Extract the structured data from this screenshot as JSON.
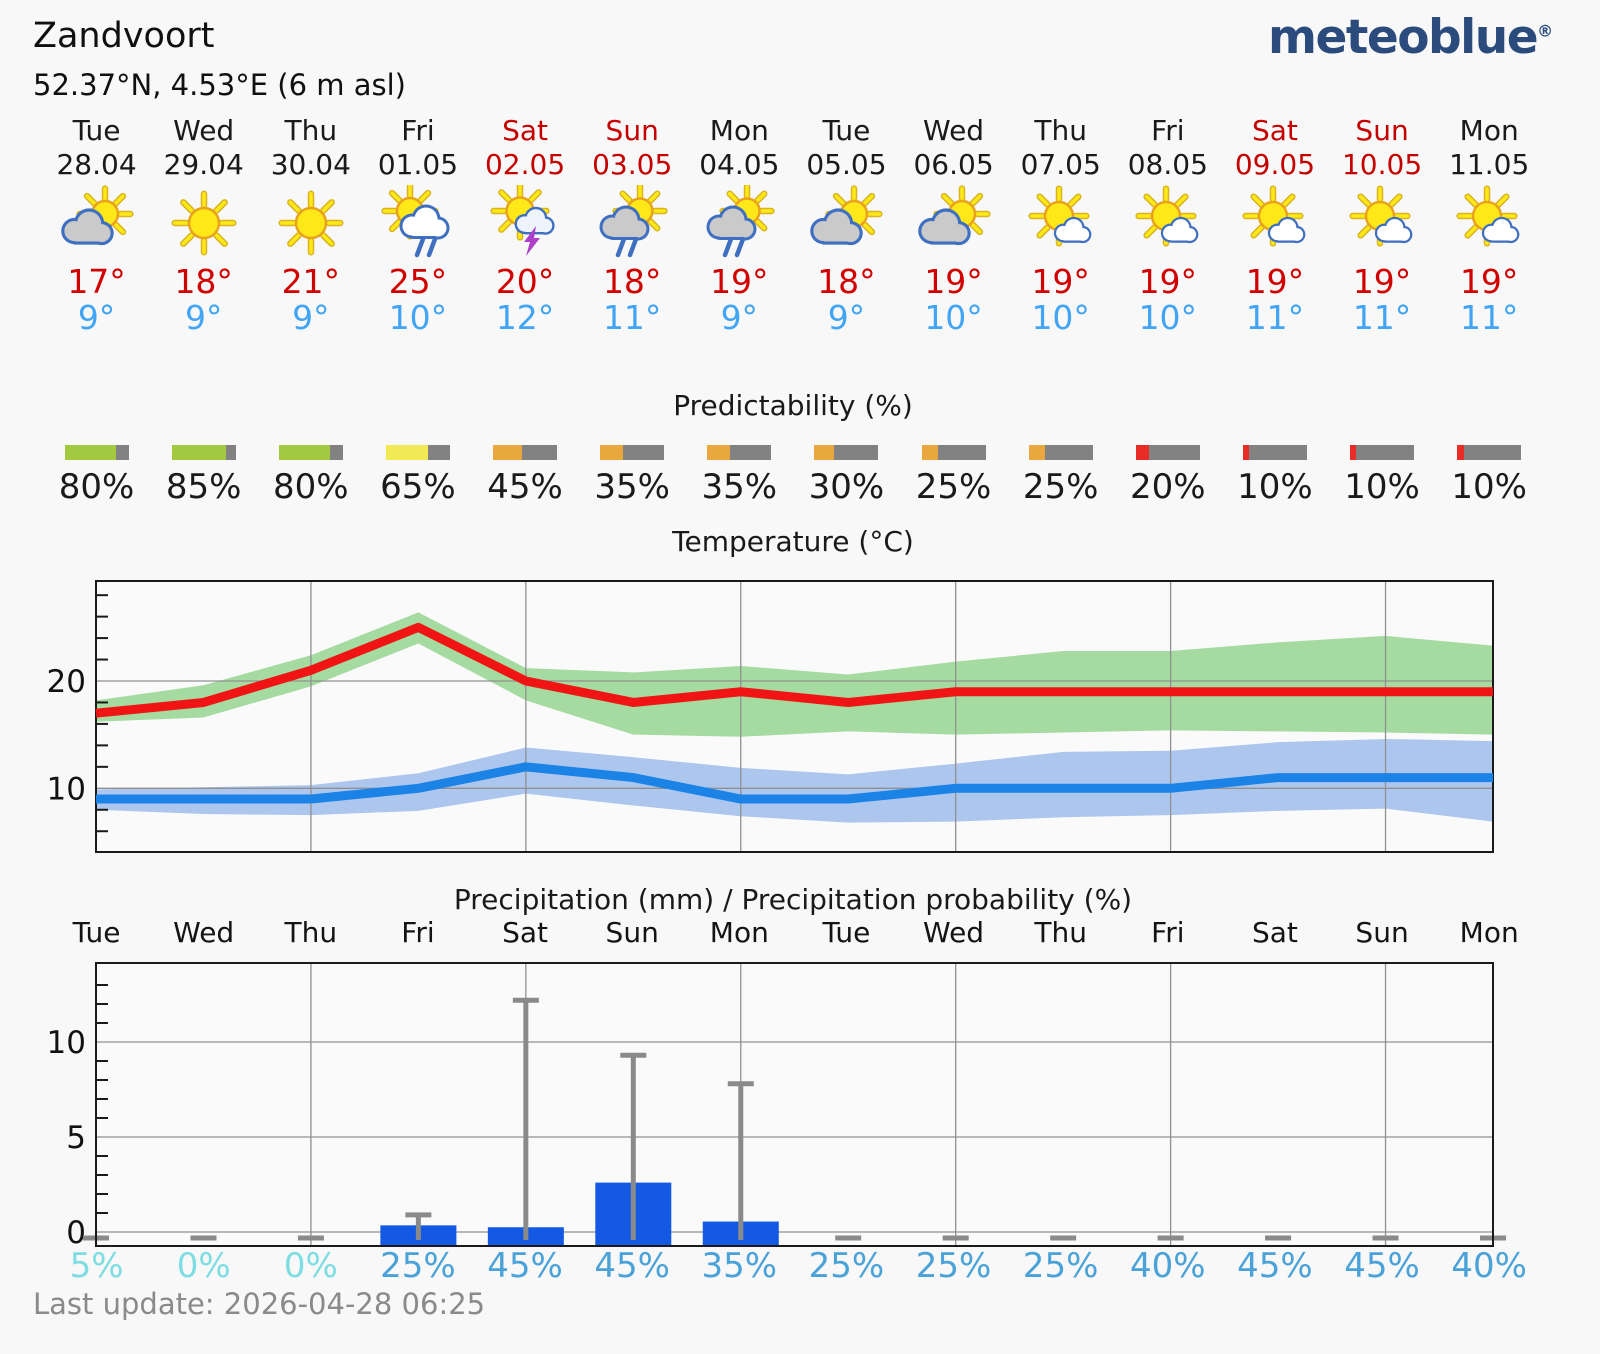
{
  "header": {
    "title": "Zandvoort",
    "subtitle": "52.37°N, 4.53°E (6 m asl)",
    "logo_text": "meteoblue",
    "logo_reg": "®"
  },
  "sections": {
    "predictability_title": "Predictability (%)"
  },
  "days": [
    {
      "name": "Tue",
      "date": "28.04",
      "weekend": false,
      "icon": "sun-cloud-gray",
      "tmax": "17°",
      "tmin": "9°",
      "predictability": "80%",
      "pred_color": "green",
      "precip_prob": "5%"
    },
    {
      "name": "Wed",
      "date": "29.04",
      "weekend": false,
      "icon": "sun",
      "tmax": "18°",
      "tmin": "9°",
      "predictability": "85%",
      "pred_color": "green",
      "precip_prob": "0%"
    },
    {
      "name": "Thu",
      "date": "30.04",
      "weekend": false,
      "icon": "sun",
      "tmax": "21°",
      "tmin": "9°",
      "predictability": "80%",
      "pred_color": "green",
      "precip_prob": "0%"
    },
    {
      "name": "Fri",
      "date": "01.05",
      "weekend": false,
      "icon": "sun-cloud-white-rain",
      "tmax": "25°",
      "tmin": "10°",
      "predictability": "65%",
      "pred_color": "yellow",
      "precip_prob": "25%"
    },
    {
      "name": "Sat",
      "date": "02.05",
      "weekend": true,
      "icon": "sun-cloud-thunder",
      "tmax": "20°",
      "tmin": "12°",
      "predictability": "45%",
      "pred_color": "orange",
      "precip_prob": "45%"
    },
    {
      "name": "Sun",
      "date": "03.05",
      "weekend": true,
      "icon": "sun-cloud-gray-rain",
      "tmax": "18°",
      "tmin": "11°",
      "predictability": "35%",
      "pred_color": "orange",
      "precip_prob": "45%"
    },
    {
      "name": "Mon",
      "date": "04.05",
      "weekend": false,
      "icon": "sun-cloud-gray-rain",
      "tmax": "19°",
      "tmin": "9°",
      "predictability": "35%",
      "pred_color": "orange",
      "precip_prob": "35%"
    },
    {
      "name": "Tue",
      "date": "05.05",
      "weekend": false,
      "icon": "sun-cloud-gray",
      "tmax": "18°",
      "tmin": "9°",
      "predictability": "30%",
      "pred_color": "orange",
      "precip_prob": "25%"
    },
    {
      "name": "Wed",
      "date": "06.05",
      "weekend": false,
      "icon": "sun-cloud-gray",
      "tmax": "19°",
      "tmin": "10°",
      "predictability": "25%",
      "pred_color": "orange",
      "precip_prob": "25%"
    },
    {
      "name": "Thu",
      "date": "07.05",
      "weekend": false,
      "icon": "sun-cloud-small",
      "tmax": "19°",
      "tmin": "10°",
      "predictability": "25%",
      "pred_color": "orange",
      "precip_prob": "25%"
    },
    {
      "name": "Fri",
      "date": "08.05",
      "weekend": false,
      "icon": "sun-cloud-small",
      "tmax": "19°",
      "tmin": "10°",
      "predictability": "20%",
      "pred_color": "red",
      "precip_prob": "40%"
    },
    {
      "name": "Sat",
      "date": "09.05",
      "weekend": true,
      "icon": "sun-cloud-small",
      "tmax": "19°",
      "tmin": "11°",
      "predictability": "10%",
      "pred_color": "red",
      "precip_prob": "45%"
    },
    {
      "name": "Sun",
      "date": "10.05",
      "weekend": true,
      "icon": "sun-cloud-small",
      "tmax": "19°",
      "tmin": "11°",
      "predictability": "10%",
      "pred_color": "red",
      "precip_prob": "45%"
    },
    {
      "name": "Mon",
      "date": "11.05",
      "weekend": false,
      "icon": "sun-cloud-small",
      "tmax": "19°",
      "tmin": "11°",
      "predictability": "10%",
      "pred_color": "red",
      "precip_prob": "40%"
    }
  ],
  "chart_data": [
    {
      "type": "line",
      "title": "Temperature (°C)",
      "x": [
        "Tue 28.04",
        "Wed 29.04",
        "Thu 30.04",
        "Fri 01.05",
        "Sat 02.05",
        "Sun 03.05",
        "Mon 04.05",
        "Tue 05.05",
        "Wed 06.05",
        "Thu 07.05",
        "Fri 08.05",
        "Sat 09.05",
        "Sun 10.05",
        "Mon 11.05"
      ],
      "ylim": [
        4.1,
        29.3
      ],
      "yticks": [
        10,
        20
      ],
      "minor_tick_step": 2,
      "grid_x_day_indices": [
        2,
        4,
        6,
        8,
        10,
        12
      ],
      "series": [
        {
          "name": "max-temperature",
          "color": "#f01414",
          "values": [
            17,
            18,
            21,
            25,
            20,
            18,
            19,
            18,
            19,
            19,
            19,
            19,
            19,
            19
          ]
        },
        {
          "name": "min-temperature",
          "color": "#1b82e6",
          "values": [
            9,
            9,
            9,
            10,
            12,
            11,
            9,
            9,
            10,
            10,
            10,
            11,
            11,
            11
          ]
        },
        {
          "name": "max-temperature-range-low",
          "color": "#a5dba0",
          "values": [
            16.2,
            16.6,
            19.5,
            23.5,
            18.2,
            15.0,
            14.8,
            15.3,
            15.0,
            15.2,
            15.4,
            15.3,
            15.2,
            15.0
          ]
        },
        {
          "name": "max-temperature-range-high",
          "color": "#a5dba0",
          "values": [
            18.2,
            19.6,
            22.4,
            26.4,
            21.2,
            20.8,
            21.4,
            20.6,
            21.8,
            22.8,
            22.8,
            23.6,
            24.2,
            23.3
          ]
        },
        {
          "name": "min-temperature-range-low",
          "color": "#adc6ee",
          "values": [
            8.0,
            7.6,
            7.5,
            7.9,
            9.5,
            8.4,
            7.4,
            6.8,
            6.9,
            7.3,
            7.5,
            7.9,
            8.1,
            6.9
          ]
        },
        {
          "name": "min-temperature-range-high",
          "color": "#adc6ee",
          "values": [
            9.9,
            10.1,
            10.3,
            11.4,
            13.8,
            12.9,
            11.9,
            11.3,
            12.3,
            13.4,
            13.5,
            14.3,
            14.6,
            14.4
          ]
        }
      ]
    },
    {
      "type": "bar",
      "title": "Precipitation (mm) / Precipitation probability (%)",
      "categories": [
        "Tue",
        "Wed",
        "Thu",
        "Fri",
        "Sat",
        "Sun",
        "Mon",
        "Tue",
        "Wed",
        "Thu",
        "Fri",
        "Sat",
        "Sun",
        "Mon"
      ],
      "values": [
        0,
        0,
        0,
        0.35,
        0.25,
        2.6,
        0.55,
        0,
        0,
        0,
        0,
        0,
        0,
        0
      ],
      "max_values": [
        0,
        0,
        0,
        0.9,
        12.2,
        9.3,
        7.8,
        0,
        0,
        0,
        0,
        0,
        0,
        0
      ],
      "probabilities": [
        5,
        0,
        0,
        25,
        45,
        45,
        35,
        25,
        25,
        25,
        40,
        45,
        45,
        40
      ],
      "ylim": [
        -0.8,
        14.2
      ],
      "yticks": [
        0,
        5,
        10
      ],
      "bar_color": "#1359e4",
      "whisker_color": "#8a8a8a"
    }
  ],
  "palette": {
    "logo_navy": "#2a4b7c",
    "weekend_red": "#c40000",
    "tmax_red": "#d10000",
    "tmin_blue": "#41a4f4",
    "pred_green": "#a2c93f",
    "pred_yellow": "#f2ea55",
    "pred_orange": "#e9a83e",
    "pred_red": "#ea2c26",
    "pred_track": "#828282",
    "prob_cyan": "#7edde2",
    "prob_blue": "#4aa2d8",
    "grid_gray": "#909090",
    "cloud_outline_blue": "#3f6fc0",
    "sun_yellow": "#ffe818",
    "bolt_purple": "#ad3fc9"
  },
  "footer": {
    "last_update": "Last update: 2026-04-28 06:25"
  }
}
